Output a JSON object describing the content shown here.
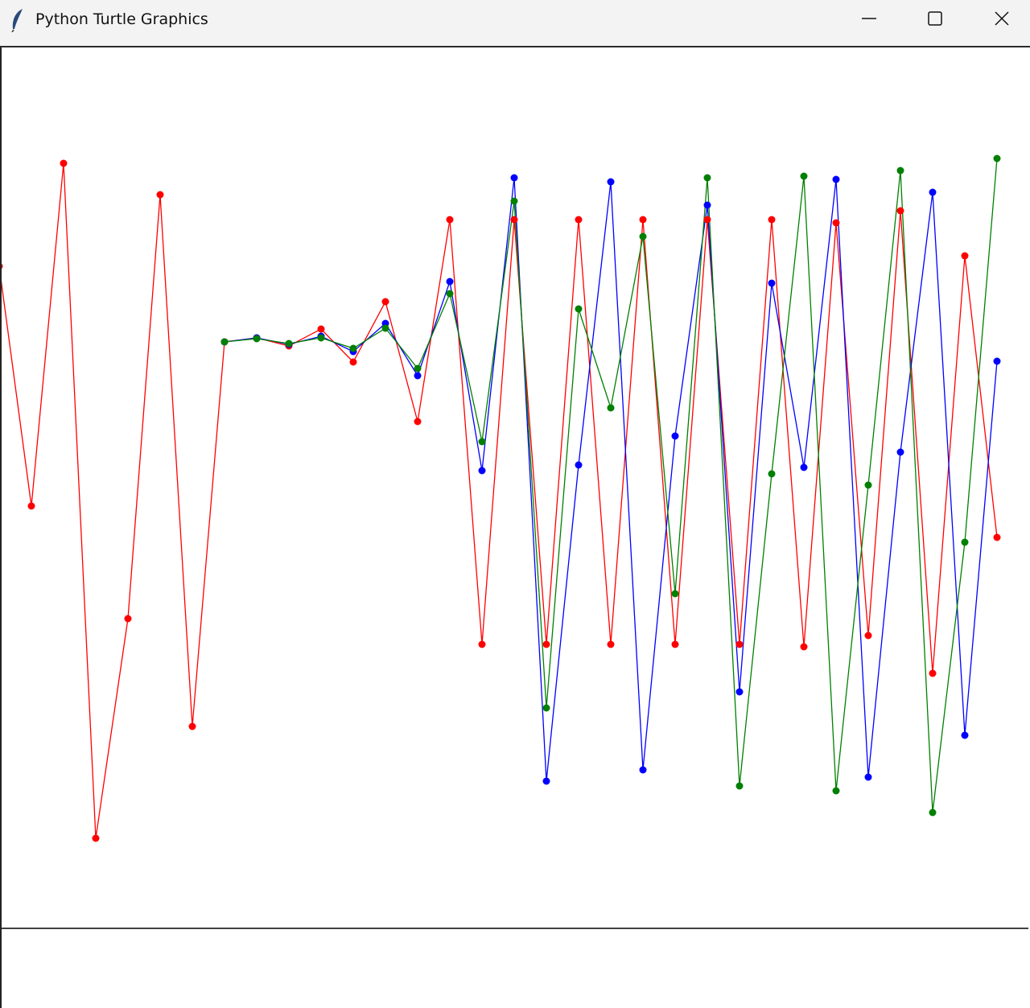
{
  "window": {
    "title": "Python Turtle Graphics",
    "icon": "feather-icon",
    "controls": [
      "minimize-icon",
      "maximize-icon",
      "close-icon"
    ]
  },
  "chart_data": {
    "type": "line",
    "title": "",
    "xlabel": "",
    "ylabel": "",
    "grid": false,
    "markers": "dot",
    "baseline_y": -498,
    "xlim": [
      -640,
      640
    ],
    "ylim": [
      -597,
      597
    ],
    "series": [
      {
        "color": "#ff0000",
        "x": [
          -643,
          -603,
          -563,
          -523,
          -483,
          -443,
          -403,
          -363,
          -323,
          -283,
          -243,
          -203,
          -163,
          -123,
          -83,
          -43,
          -3,
          37,
          77,
          117,
          157,
          197,
          237,
          277,
          317,
          357,
          397,
          437,
          477,
          517,
          557,
          597
        ],
        "y": [
          325,
          27,
          453,
          -386,
          -113,
          414,
          -247,
          231,
          236,
          226,
          247,
          206,
          281,
          132,
          383,
          -145,
          383,
          -145,
          383,
          -145,
          383,
          -145,
          383,
          -145,
          383,
          -148,
          379,
          -134,
          394,
          -181,
          338,
          -12
        ]
      },
      {
        "color": "#0000ff",
        "x": [
          -363,
          -323,
          -283,
          -243,
          -203,
          -163,
          -123,
          -83,
          -43,
          -3,
          37,
          77,
          117,
          157,
          197,
          237,
          277,
          317,
          357,
          397,
          437,
          477,
          517,
          557,
          597
        ],
        "y": [
          231,
          236,
          228,
          238,
          219,
          254,
          189,
          306,
          71,
          435,
          -315,
          78,
          430,
          -301,
          114,
          401,
          -204,
          304,
          75,
          433,
          -310,
          94,
          417,
          -258,
          207
        ]
      },
      {
        "color": "#008000",
        "x": [
          -363,
          -323,
          -283,
          -243,
          -203,
          -163,
          -123,
          -83,
          -43,
          -3,
          37,
          77,
          117,
          157,
          197,
          237,
          277,
          317,
          357,
          397,
          437,
          477,
          517,
          557,
          597
        ],
        "y": [
          231,
          235,
          229,
          236,
          223,
          248,
          198,
          291,
          107,
          406,
          -224,
          272,
          149,
          362,
          -82,
          435,
          -321,
          67,
          437,
          -327,
          53,
          444,
          -354,
          -18,
          459
        ]
      }
    ]
  }
}
